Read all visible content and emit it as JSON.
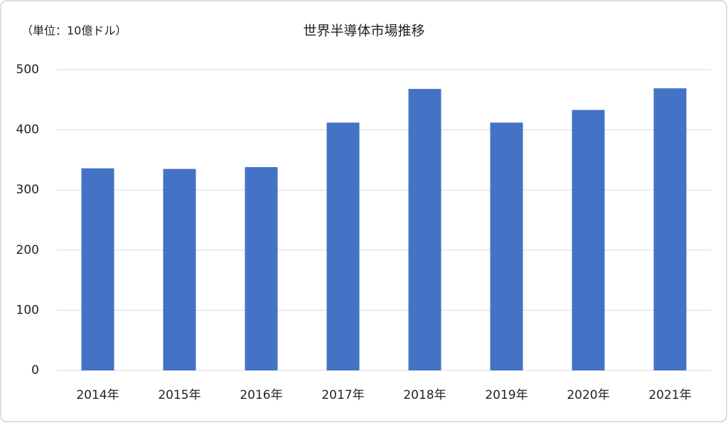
{
  "chart_data": {
    "type": "bar",
    "title": "世界半導体市場推移",
    "unit_label": "（単位：10億ドル）",
    "categories": [
      "2014年",
      "2015年",
      "2016年",
      "2017年",
      "2018年",
      "2019年",
      "2020年",
      "2021年"
    ],
    "values": [
      336,
      335,
      338,
      412,
      468,
      412,
      433,
      469
    ],
    "color": "#4472c4",
    "ylim": [
      0,
      500
    ],
    "yticks": [
      0,
      100,
      200,
      300,
      400,
      500
    ],
    "grid": true
  }
}
